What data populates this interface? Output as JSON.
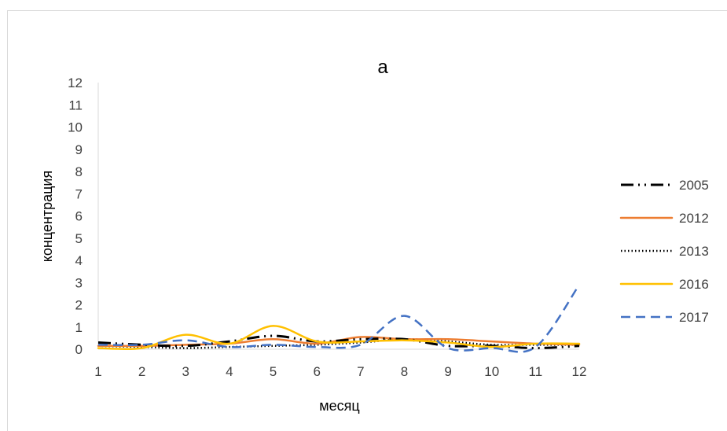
{
  "chart_data": {
    "type": "line",
    "title": "а",
    "xlabel": "месяц",
    "ylabel": "концентрация",
    "categories": [
      "1",
      "2",
      "3",
      "4",
      "5",
      "6",
      "7",
      "8",
      "9",
      "10",
      "11",
      "12"
    ],
    "x": [
      1,
      2,
      3,
      4,
      5,
      6,
      7,
      8,
      9,
      10,
      11,
      12
    ],
    "ylim": [
      0,
      12
    ],
    "yticks": [
      "0",
      "1",
      "2",
      "3",
      "4",
      "5",
      "6",
      "7",
      "8",
      "9",
      "10",
      "11",
      "12"
    ],
    "grid": false,
    "legend_position": "right",
    "series": [
      {
        "name": "2005",
        "color": "#000000",
        "style": "long-dash-dot-dot",
        "values": [
          0.3,
          0.2,
          0.15,
          0.35,
          0.6,
          0.35,
          0.45,
          0.45,
          0.15,
          0.15,
          0.05,
          0.15
        ]
      },
      {
        "name": "2012",
        "color": "#ed7d31",
        "style": "solid",
        "values": [
          0.15,
          0.15,
          0.2,
          0.25,
          0.45,
          0.25,
          0.55,
          0.45,
          0.45,
          0.35,
          0.25,
          0.2
        ]
      },
      {
        "name": "2013",
        "color": "#000000",
        "style": "dotted",
        "values": [
          0.15,
          0.1,
          0.05,
          0.1,
          0.15,
          0.2,
          0.3,
          0.45,
          0.35,
          0.2,
          0.2,
          0.2
        ]
      },
      {
        "name": "2016",
        "color": "#ffc000",
        "style": "solid",
        "values": [
          0.05,
          0.05,
          0.65,
          0.25,
          1.05,
          0.35,
          0.35,
          0.4,
          0.3,
          0.1,
          0.25,
          0.25
        ]
      },
      {
        "name": "2017",
        "color": "#4472c4",
        "style": "dashed",
        "values": [
          0.2,
          0.2,
          0.4,
          0.1,
          0.2,
          0.1,
          0.2,
          1.5,
          0.05,
          0.05,
          0.1,
          2.9
        ]
      }
    ]
  }
}
